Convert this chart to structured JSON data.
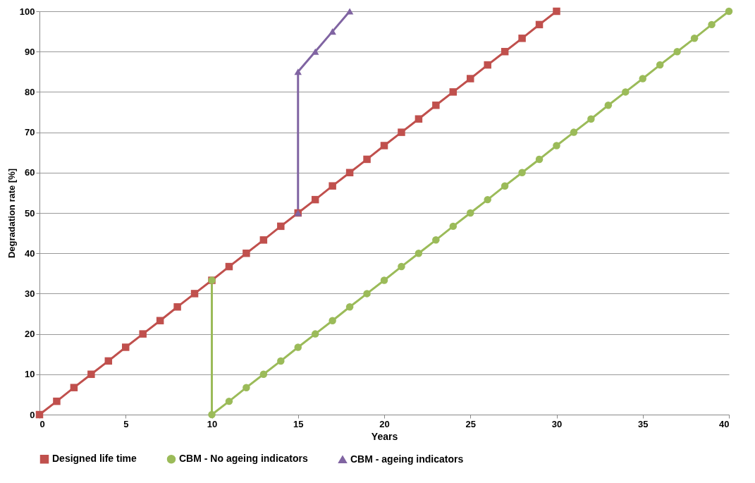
{
  "chart_data": {
    "type": "line",
    "xlabel": "Years",
    "ylabel": "Degradation rate  [%]",
    "xlim": [
      0,
      40
    ],
    "xticks": [
      0,
      5,
      10,
      15,
      20,
      25,
      30,
      35,
      40
    ],
    "ylim": [
      0,
      100
    ],
    "yticks": [
      0,
      10,
      20,
      30,
      40,
      50,
      60,
      70,
      80,
      90,
      100
    ],
    "grid": "y",
    "legend": "bottom",
    "line_style": "solid",
    "series": [
      {
        "name": "Designed life time",
        "color": "#c0504d",
        "marker": "square",
        "x": [
          0,
          1,
          2,
          3,
          4,
          5,
          6,
          7,
          8,
          9,
          10,
          11,
          12,
          13,
          14,
          15,
          16,
          17,
          18,
          19,
          20,
          21,
          22,
          23,
          24,
          25,
          26,
          27,
          28,
          29,
          30
        ],
        "values": [
          0,
          3.3,
          6.7,
          10,
          13.3,
          16.7,
          20,
          23.3,
          26.7,
          30,
          33.3,
          36.7,
          40,
          43.3,
          46.7,
          50,
          53.3,
          56.7,
          60,
          63.3,
          66.7,
          70,
          73.3,
          76.7,
          80,
          83.3,
          86.7,
          90,
          93.3,
          96.7,
          100
        ]
      },
      {
        "name": "CBM - No ageing indicators",
        "color": "#9bbb59",
        "marker": "circle",
        "x": [
          10,
          10,
          11,
          12,
          13,
          14,
          15,
          16,
          17,
          18,
          19,
          20,
          21,
          22,
          23,
          24,
          25,
          26,
          27,
          28,
          29,
          30,
          31,
          32,
          33,
          34,
          35,
          36,
          37,
          38,
          39,
          40
        ],
        "values": [
          33.3,
          0,
          3.3,
          6.7,
          10,
          13.3,
          16.7,
          20,
          23.3,
          26.7,
          30,
          33.3,
          36.7,
          40,
          43.3,
          46.7,
          50,
          53.3,
          56.7,
          60,
          63.3,
          66.7,
          70,
          73.3,
          76.7,
          80,
          83.3,
          86.7,
          90,
          93.3,
          96.7,
          100
        ]
      },
      {
        "name": "CBM - ageing indicators",
        "color": "#8064a2",
        "marker": "triangle",
        "x": [
          15,
          15,
          16,
          17,
          18
        ],
        "values": [
          50,
          85,
          90,
          95,
          100
        ]
      }
    ]
  }
}
